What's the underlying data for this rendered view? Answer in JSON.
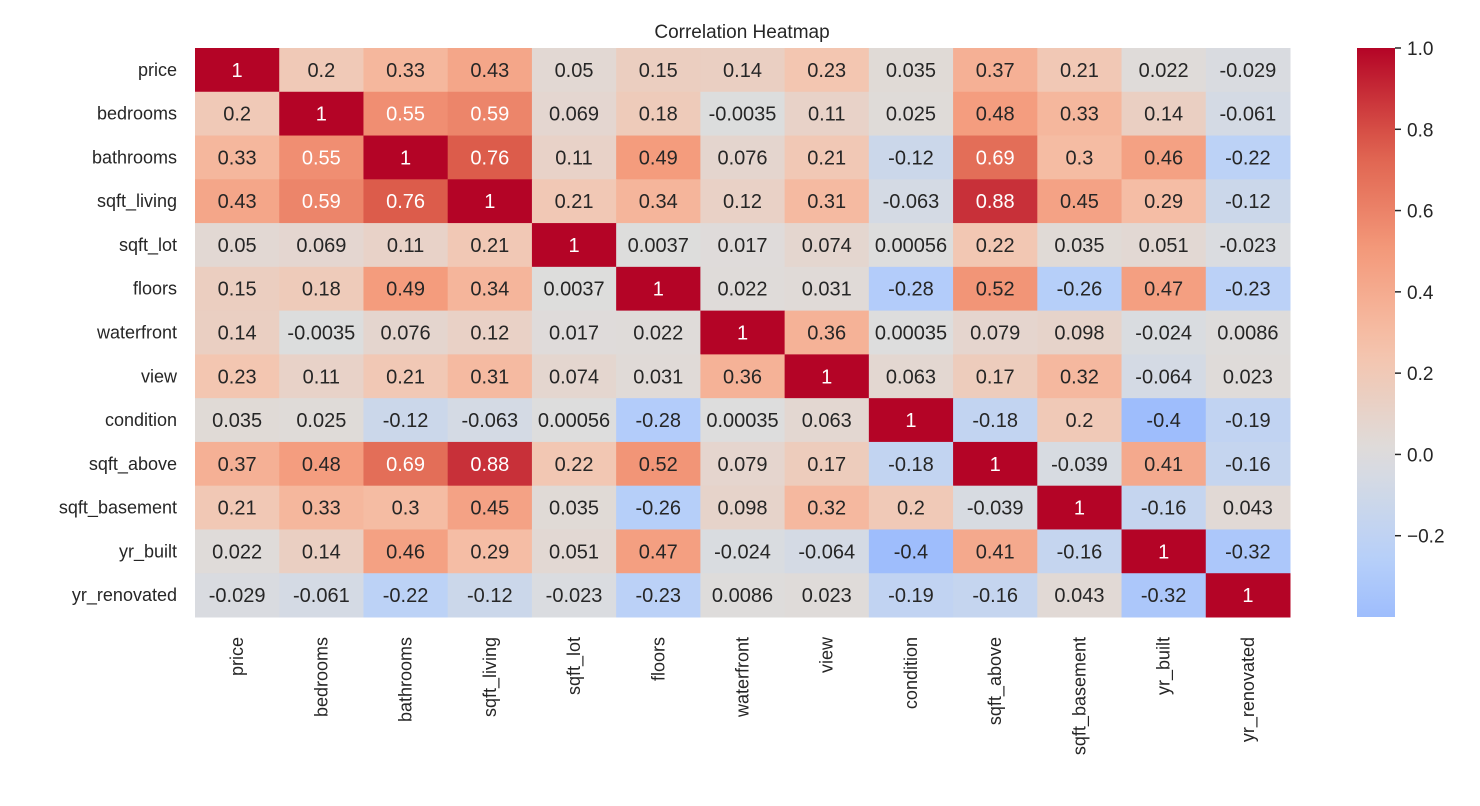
{
  "chart_data": {
    "type": "heatmap",
    "title": "Correlation Heatmap",
    "colormap": "coolwarm",
    "center": 0,
    "color_range": [
      -0.4,
      1.0
    ],
    "colorbar_ticks": [
      "1.0",
      "0.8",
      "0.6",
      "0.4",
      "0.2",
      "0.0",
      "−0.2"
    ],
    "colorbar_tick_values": [
      1.0,
      0.8,
      0.6,
      0.4,
      0.2,
      0.0,
      -0.2
    ],
    "row_labels": [
      "price",
      "bedrooms",
      "bathrooms",
      "sqft_living",
      "sqft_lot",
      "floors",
      "waterfront",
      "view",
      "condition",
      "sqft_above",
      "sqft_basement",
      "yr_built",
      "yr_renovated"
    ],
    "col_labels": [
      "price",
      "bedrooms",
      "bathrooms",
      "sqft_living",
      "sqft_lot",
      "floors",
      "waterfront",
      "view",
      "condition",
      "sqft_above",
      "sqft_basement",
      "yr_built",
      "yr_renovated"
    ],
    "values": [
      [
        1,
        0.2,
        0.33,
        0.43,
        0.05,
        0.15,
        0.14,
        0.23,
        0.035,
        0.37,
        0.21,
        0.022,
        -0.029
      ],
      [
        0.2,
        1,
        0.55,
        0.59,
        0.069,
        0.18,
        -0.0035,
        0.11,
        0.025,
        0.48,
        0.33,
        0.14,
        -0.061
      ],
      [
        0.33,
        0.55,
        1,
        0.76,
        0.11,
        0.49,
        0.076,
        0.21,
        -0.12,
        0.69,
        0.3,
        0.46,
        -0.22
      ],
      [
        0.43,
        0.59,
        0.76,
        1,
        0.21,
        0.34,
        0.12,
        0.31,
        -0.063,
        0.88,
        0.45,
        0.29,
        -0.12
      ],
      [
        0.05,
        0.069,
        0.11,
        0.21,
        1,
        0.0037,
        0.017,
        0.074,
        0.00056,
        0.22,
        0.035,
        0.051,
        -0.023
      ],
      [
        0.15,
        0.18,
        0.49,
        0.34,
        0.0037,
        1,
        0.022,
        0.031,
        -0.28,
        0.52,
        -0.26,
        0.47,
        -0.23
      ],
      [
        0.14,
        -0.0035,
        0.076,
        0.12,
        0.017,
        0.022,
        1,
        0.36,
        0.00035,
        0.079,
        0.098,
        -0.024,
        0.0086
      ],
      [
        0.23,
        0.11,
        0.21,
        0.31,
        0.074,
        0.031,
        0.36,
        1,
        0.063,
        0.17,
        0.32,
        -0.064,
        0.023
      ],
      [
        0.035,
        0.025,
        -0.12,
        -0.063,
        0.00056,
        -0.28,
        0.00035,
        0.063,
        1,
        -0.18,
        0.2,
        -0.4,
        -0.19
      ],
      [
        0.37,
        0.48,
        0.69,
        0.88,
        0.22,
        0.52,
        0.079,
        0.17,
        -0.18,
        1,
        -0.039,
        0.41,
        -0.16
      ],
      [
        0.21,
        0.33,
        0.3,
        0.45,
        0.035,
        -0.26,
        0.098,
        0.32,
        0.2,
        -0.039,
        1,
        -0.16,
        0.043
      ],
      [
        0.022,
        0.14,
        0.46,
        0.29,
        0.051,
        0.47,
        -0.024,
        -0.064,
        -0.4,
        0.41,
        -0.16,
        1,
        -0.32
      ],
      [
        -0.029,
        -0.061,
        -0.22,
        -0.12,
        -0.023,
        -0.23,
        0.0086,
        0.023,
        -0.19,
        -0.16,
        0.043,
        -0.32,
        1
      ]
    ],
    "annotated": true
  }
}
